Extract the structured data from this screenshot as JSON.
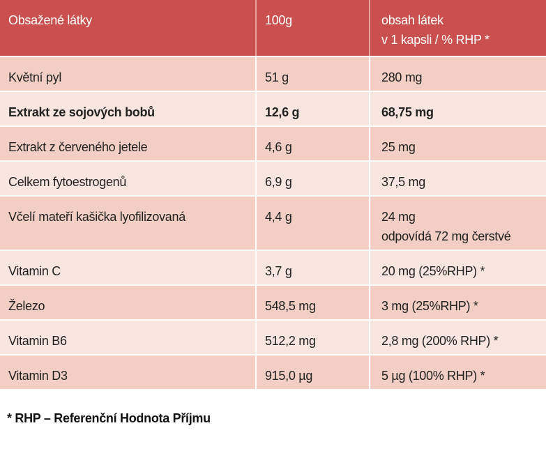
{
  "table": {
    "header": [
      [
        "Obsažené látky"
      ],
      [
        "100g"
      ],
      [
        "obsah látek",
        "v 1 kapsli / % RHP *"
      ]
    ],
    "rows": [
      [
        [
          "Květní pyl"
        ],
        [
          "51 g"
        ],
        [
          "280 mg"
        ]
      ],
      [
        [
          "Extrakt ze sojových bobů"
        ],
        [
          "12,6 g"
        ],
        [
          "68,75 mg"
        ]
      ],
      [
        [
          "Extrakt z červeného jetele"
        ],
        [
          "4,6 g"
        ],
        [
          "25 mg"
        ]
      ],
      [
        [
          "Celkem fytoestrogenů"
        ],
        [
          "6,9 g"
        ],
        [
          "37,5 mg"
        ]
      ],
      [
        [
          "Včelí mateří kašička lyofilizovaná"
        ],
        [
          "4,4 g"
        ],
        [
          "24 mg",
          "odpovídá 72 mg čerstvé"
        ]
      ],
      [
        [
          "Vitamin C"
        ],
        [
          "3,7 g"
        ],
        [
          "20 mg (25%RHP) *"
        ]
      ],
      [
        [
          "Železo"
        ],
        [
          "548,5 mg"
        ],
        [
          "3 mg (25%RHP) *"
        ]
      ],
      [
        [
          "Vitamin B6"
        ],
        [
          "512,2 mg"
        ],
        [
          "2,8 mg (200% RHP) *"
        ]
      ],
      [
        [
          "Vitamin D3"
        ],
        [
          "915,0 µg"
        ],
        [
          "5 µg (100% RHP) *"
        ]
      ]
    ]
  },
  "footnote": "* RHP – Referenční Hodnota Příjmu"
}
